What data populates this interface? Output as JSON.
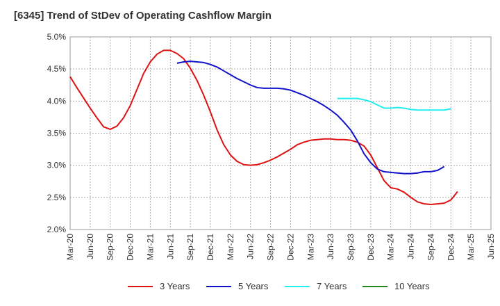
{
  "chart_data": {
    "type": "line",
    "title": "[6345]  Trend of StDev of Operating Cashflow Margin",
    "xlabel": "",
    "ylabel": "",
    "ylim": [
      2.0,
      5.0
    ],
    "yticks": [
      "5.0%",
      "4.5%",
      "4.0%",
      "3.5%",
      "3.0%",
      "2.5%",
      "2.0%"
    ],
    "ytick_values": [
      5.0,
      4.5,
      4.0,
      3.5,
      3.0,
      2.5,
      2.0
    ],
    "xticks": [
      "Mar-20",
      "Jun-20",
      "Sep-20",
      "Dec-20",
      "Mar-21",
      "Jun-21",
      "Sep-21",
      "Dec-21",
      "Mar-22",
      "Jun-22",
      "Sep-22",
      "Dec-22",
      "Mar-23",
      "Jun-23",
      "Sep-23",
      "Dec-23",
      "Mar-24",
      "Jun-24",
      "Sep-24",
      "Dec-24",
      "Mar-25",
      "Jun-25"
    ],
    "grid": true,
    "legend_position": "bottom",
    "series": [
      {
        "name": "3 Years",
        "color": "#dd1111",
        "start_index": 0,
        "values": [
          4.38,
          4.21,
          4.05,
          3.89,
          3.74,
          3.6,
          3.56,
          3.61,
          3.74,
          3.93,
          4.18,
          4.43,
          4.61,
          4.73,
          4.79,
          4.79,
          4.74,
          4.66,
          4.51,
          4.32,
          4.09,
          3.83,
          3.55,
          3.32,
          3.16,
          3.06,
          3.01,
          3.0,
          3.01,
          3.04,
          3.08,
          3.13,
          3.19,
          3.25,
          3.32,
          3.36,
          3.39,
          3.4,
          3.41,
          3.41,
          3.4,
          3.4,
          3.39,
          3.36,
          3.3,
          3.16,
          2.96,
          2.76,
          2.65,
          2.63,
          2.58,
          2.5,
          2.43,
          2.4,
          2.39,
          2.4,
          2.41,
          2.46,
          2.59
        ]
      },
      {
        "name": "5 Years",
        "color": "#1111cc",
        "start_index": 16,
        "values": [
          4.59,
          4.61,
          4.62,
          4.61,
          4.6,
          4.57,
          4.53,
          4.47,
          4.41,
          4.35,
          4.3,
          4.25,
          4.21,
          4.2,
          4.2,
          4.2,
          4.19,
          4.17,
          4.13,
          4.09,
          4.04,
          3.99,
          3.93,
          3.86,
          3.78,
          3.67,
          3.55,
          3.38,
          3.18,
          3.04,
          2.94,
          2.9,
          2.89,
          2.88,
          2.87,
          2.87,
          2.88,
          2.9,
          2.9,
          2.92,
          2.98
        ]
      },
      {
        "name": "7 Years",
        "color": "#22eeee",
        "start_index": 40,
        "values": [
          4.04,
          4.04,
          4.04,
          4.04,
          4.02,
          3.99,
          3.94,
          3.89,
          3.89,
          3.9,
          3.89,
          3.87,
          3.86,
          3.86,
          3.86,
          3.86,
          3.86,
          3.88
        ]
      },
      {
        "name": "10 Years",
        "color": "#228822",
        "start_index": 0,
        "values": []
      }
    ]
  }
}
